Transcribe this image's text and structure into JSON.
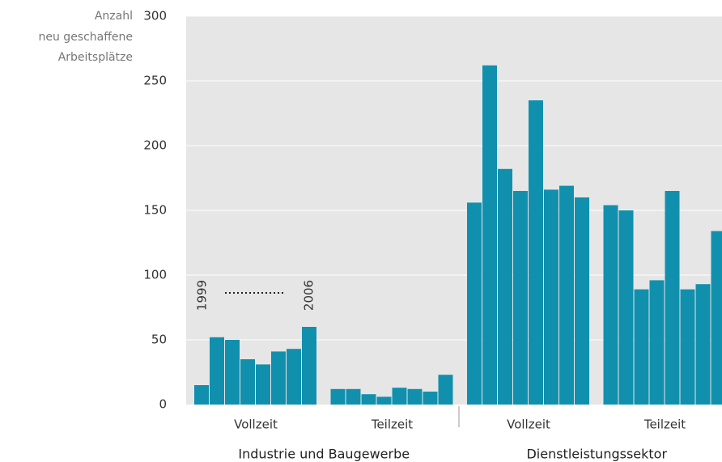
{
  "chart_data": {
    "type": "bar",
    "y_label": [
      "Anzahl",
      "neu geschaffene",
      "Arbeitsplätze"
    ],
    "color": "#1190ad",
    "ylim": [
      0,
      300
    ],
    "yticks": [
      0,
      50,
      100,
      150,
      200,
      250,
      300
    ],
    "grid": true,
    "annotations": [
      "1999",
      "2006"
    ],
    "sectors": [
      {
        "name": "Industrie und Baugewerbe",
        "groups": [
          {
            "name": "Vollzeit",
            "values": [
              15,
              52,
              50,
              35,
              31,
              41,
              43,
              60
            ]
          },
          {
            "name": "Teilzeit",
            "values": [
              12,
              12,
              8,
              6,
              13,
              12,
              10,
              23
            ]
          }
        ]
      },
      {
        "name": "Dienstleistungssektor",
        "groups": [
          {
            "name": "Vollzeit",
            "values": [
              156,
              262,
              182,
              165,
              235,
              166,
              169,
              160
            ]
          },
          {
            "name": "Teilzeit",
            "values": [
              154,
              150,
              89,
              96,
              165,
              89,
              93,
              134
            ]
          }
        ]
      }
    ]
  }
}
